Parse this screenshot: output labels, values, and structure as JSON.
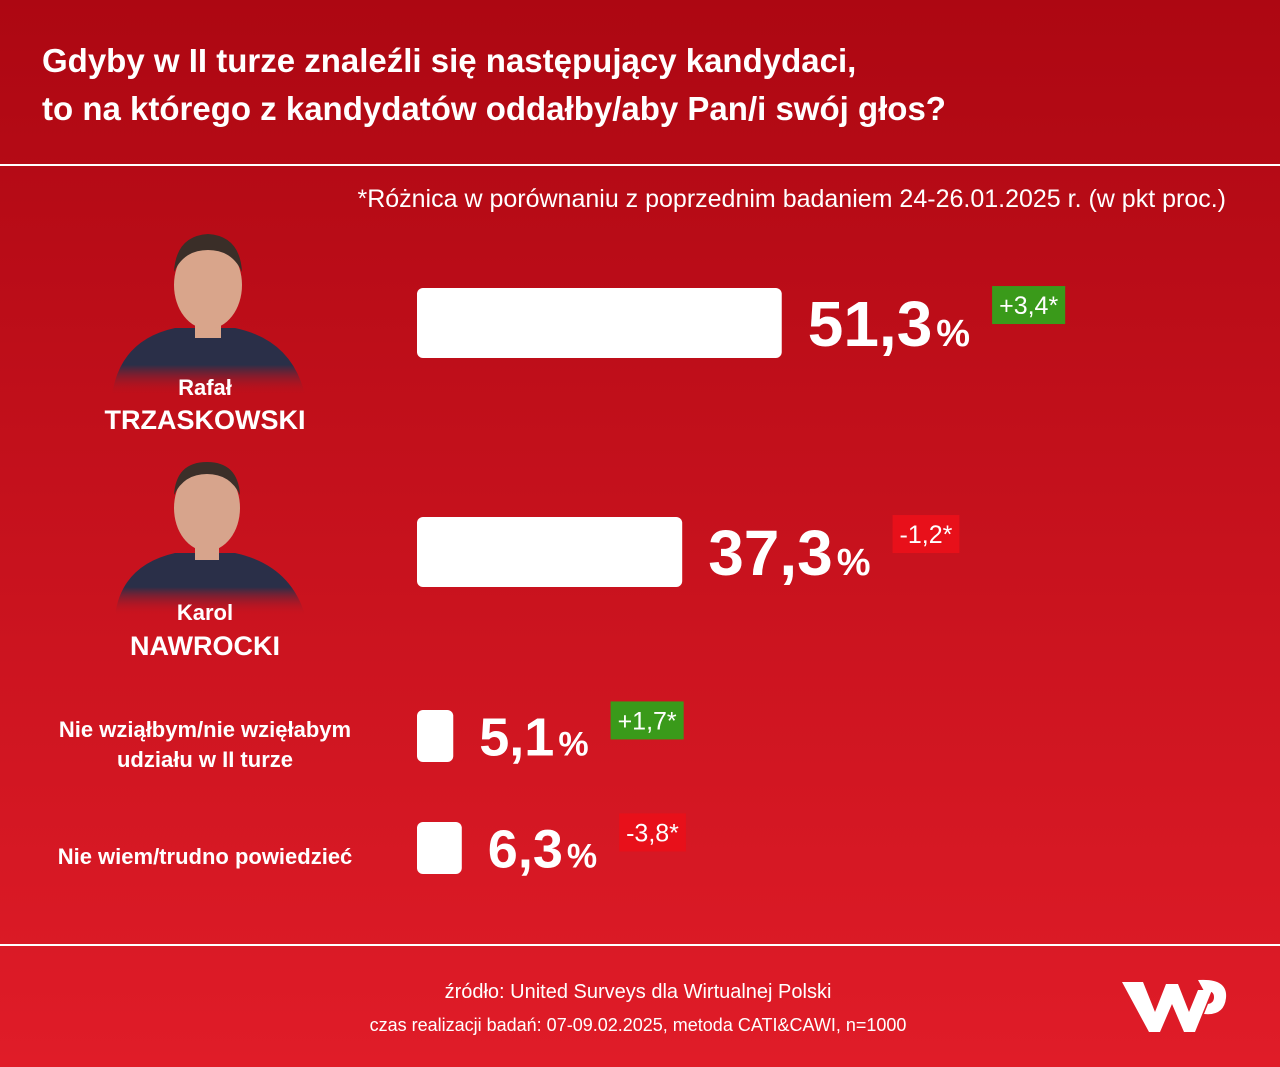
{
  "chart_data": {
    "type": "bar",
    "title": [
      "Gdyby w II turze znaleźli się następujący kandydaci,",
      "to na którego z kandydatów oddałby/aby Pan/i swój głos?"
    ],
    "note": "*Różnica w porównaniu z poprzednim badaniem 24-26.01.2025 r. (w pkt proc.)",
    "categories": [
      [
        "Rafał",
        "TRZASKOWSKI"
      ],
      [
        "Karol",
        "NAWROCKI"
      ],
      [
        "Nie wziąłbym/nie wzięłabym",
        "udziału w II turze"
      ],
      [
        "Nie wiem/trudno powiedzieć"
      ]
    ],
    "values": [
      51.3,
      37.3,
      5.1,
      6.3
    ],
    "value_labels": [
      "51,3",
      "37,3",
      "5,1",
      "6,3"
    ],
    "unit": "%",
    "color": "#ffffff",
    "change_values": [
      3.4,
      -1.2,
      1.7,
      -3.8
    ],
    "change_labels": [
      "+3,4*",
      "-1,2*",
      "+1,7*",
      "-3,8*"
    ],
    "change_colors": {
      "up": "#3a9a1a",
      "down": "#e8101a"
    },
    "source": [
      "źródło: United Surveys dla Wirtualnej Polski",
      "czas realizacji badań: 07-09.02.2025, metoda CATI&CAWI, n=1000"
    ]
  }
}
